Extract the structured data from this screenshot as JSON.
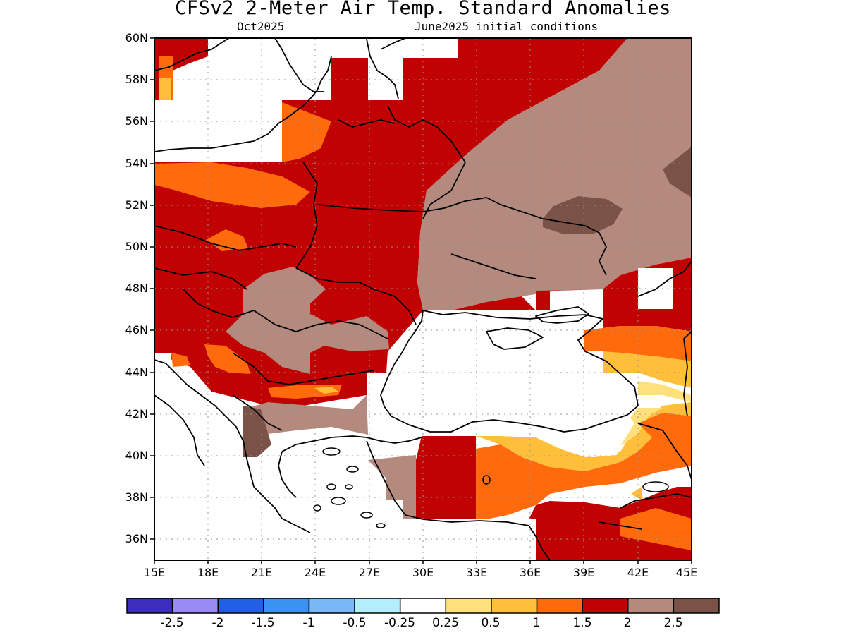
{
  "header": {
    "title": "CFSv2 2-Meter Air Temp. Standard Anomalies",
    "month": "Oct2025",
    "init": "June2025 initial conditions"
  },
  "map": {
    "lat_labels": [
      "60N",
      "58N",
      "56N",
      "54N",
      "52N",
      "50N",
      "48N",
      "46N",
      "44N",
      "42N",
      "40N",
      "38N",
      "36N"
    ],
    "lon_labels": [
      "15E",
      "18E",
      "21E",
      "24E",
      "27E",
      "30E",
      "33E",
      "36E",
      "39E",
      "42E",
      "45E"
    ],
    "lat_range": [
      35,
      60
    ],
    "lon_range": [
      15,
      45
    ],
    "grid": true
  },
  "colorbar": {
    "colors": [
      "#3c2ebd",
      "#9a8af5",
      "#2160e6",
      "#3a93f2",
      "#79b8f7",
      "#b2eefb",
      "#ffffff",
      "#ffe07a",
      "#ffbf3a",
      "#ff6a0c",
      "#c00202",
      "#b48a7f",
      "#7a5247"
    ],
    "labels": [
      "-2.5",
      "-2",
      "-1.5",
      "-1",
      "-0.5",
      "-0.25",
      "0.25",
      "0.5",
      "1",
      "1.5",
      "2",
      "2.5"
    ]
  }
}
